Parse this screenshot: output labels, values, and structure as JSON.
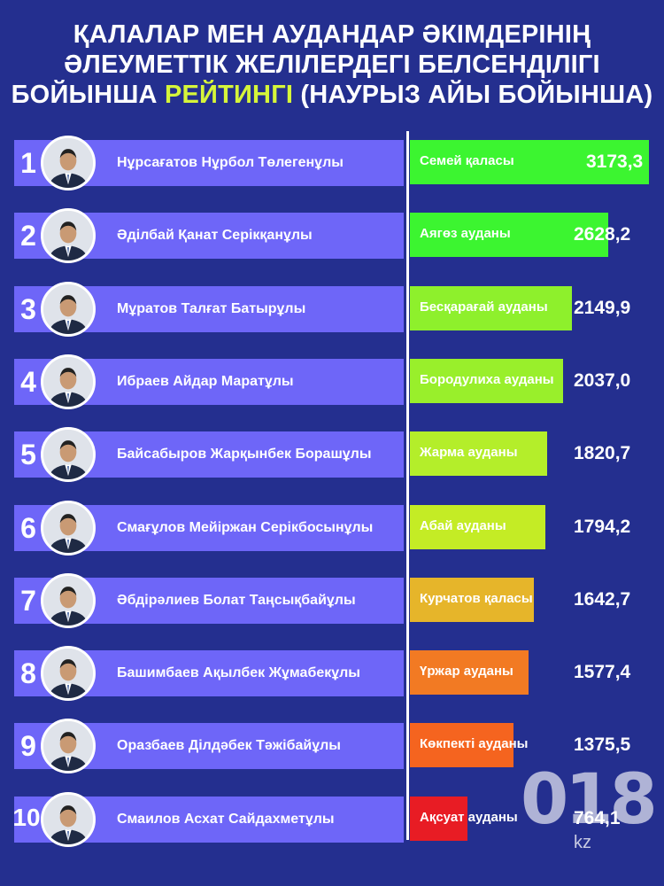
{
  "header": {
    "title_line1": "ҚАЛАЛАР МЕН АУДАНДАР ӘКІМДЕРІНІҢ",
    "title_line2": "ӘЛЕУМЕТТІК ЖЕЛІЛЕРДЕГІ БЕЛСЕНДІЛІГІ",
    "title_line3_pre": "БОЙЫНША ",
    "title_line3_highlight": "РЕЙТИНГІ",
    "title_line3_post": " (НАУРЫЗ АЙЫ БОЙЫНША)"
  },
  "colors": {
    "background": "#242f8f",
    "name_bar": "#6e66f8",
    "highlight": "#d6f53a"
  },
  "logo": {
    "mark": "018",
    "suffix": "kz"
  },
  "chart_data": {
    "type": "bar",
    "orientation": "horizontal",
    "rows": [
      {
        "rank": "1",
        "name": "Нұрсағатов Нұрбол Төлегенұлы",
        "district": "Семей қаласы",
        "value": 3173.3,
        "value_label": "3173,3",
        "color": "#3cf530"
      },
      {
        "rank": "2",
        "name": "Әділбай Қанат Серікқанұлы",
        "district": "Аягөз ауданы",
        "value": 2628.2,
        "value_label": "2628,2",
        "color": "#3cf530"
      },
      {
        "rank": "3",
        "name": "Мұратов Талғат Батырұлы",
        "district": "Бесқарағай ауданы",
        "value": 2149.9,
        "value_label": "2149,9",
        "color": "#8ef02c"
      },
      {
        "rank": "4",
        "name": "Ибраев Айдар Маратұлы",
        "district": "Бородулиха ауданы",
        "value": 2037.0,
        "value_label": "2037,0",
        "color": "#99ef2b"
      },
      {
        "rank": "5",
        "name": "Байсабыров Жарқынбек Борашұлы",
        "district": "Жарма ауданы",
        "value": 1820.7,
        "value_label": "1820,7",
        "color": "#b4ee2a"
      },
      {
        "rank": "6",
        "name": "Смағұлов Мейіржан Серікбосынұлы",
        "district": "Абай ауданы",
        "value": 1794.2,
        "value_label": "1794,2",
        "color": "#c4ec25"
      },
      {
        "rank": "7",
        "name": "Әбдірәлиев Болат Таңсықбайұлы",
        "district": "Курчатов қаласы",
        "value": 1642.7,
        "value_label": "1642,7",
        "color": "#e6b52a"
      },
      {
        "rank": "8",
        "name": "Башимбаев Ақылбек Жұмабекұлы",
        "district": "Үржар ауданы",
        "value": 1577.4,
        "value_label": "1577,4",
        "color": "#f27a23"
      },
      {
        "rank": "9",
        "name": "Оразбаев Ділдәбек Тәжібайұлы",
        "district": "Көкпекті ауданы",
        "value": 1375.5,
        "value_label": "1375,5",
        "color": "#f5641f"
      },
      {
        "rank": "10",
        "name": "Смаилов Асхат Сайдахметұлы",
        "district": "Ақсуат ауданы",
        "value": 764.1,
        "value_label": "764,1",
        "color": "#e81c24"
      }
    ]
  }
}
